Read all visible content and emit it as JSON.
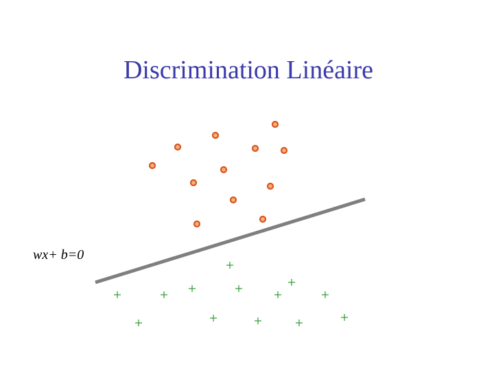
{
  "title": "Discrimination Linéaire",
  "line_label": "wx+ b=0"
}
